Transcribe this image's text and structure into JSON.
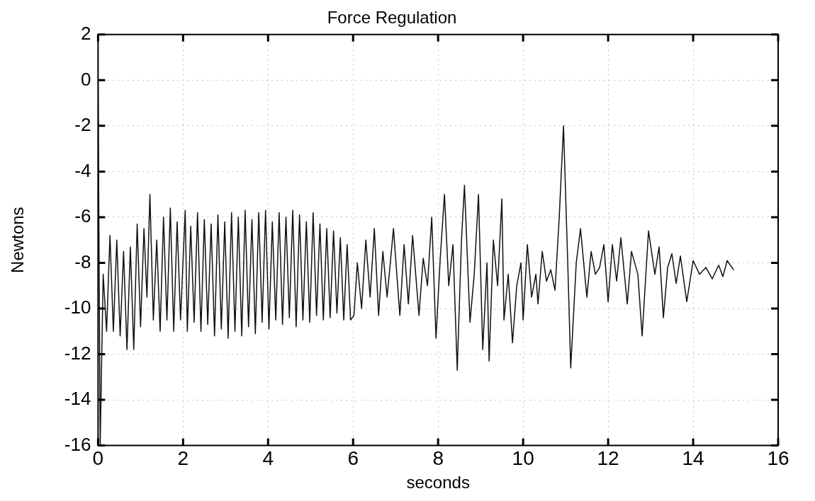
{
  "chart_data": {
    "type": "line",
    "title": "Force Regulation",
    "xlabel": "seconds",
    "ylabel": "Newtons",
    "xlim": [
      0,
      16
    ],
    "xticks": [
      0,
      2,
      4,
      6,
      8,
      10,
      12,
      14,
      16
    ],
    "ylim": [
      -16,
      2
    ],
    "yticks": [
      -16,
      -14,
      -12,
      -10,
      -8,
      -6,
      -4,
      -2,
      0,
      2
    ],
    "grid": true,
    "legend": false,
    "marker": "none",
    "line_style": "solid",
    "series": [
      {
        "color": "#111111",
        "x": [
          0,
          0.05,
          0.12,
          0.2,
          0.28,
          0.36,
          0.44,
          0.52,
          0.6,
          0.68,
          0.76,
          0.84,
          0.92,
          1.0,
          1.08,
          1.15,
          1.22,
          1.3,
          1.38,
          1.46,
          1.54,
          1.62,
          1.7,
          1.78,
          1.86,
          1.94,
          2.05,
          2.1,
          2.18,
          2.26,
          2.34,
          2.42,
          2.5,
          2.58,
          2.66,
          2.74,
          2.82,
          2.9,
          2.98,
          3.06,
          3.14,
          3.22,
          3.3,
          3.38,
          3.46,
          3.54,
          3.62,
          3.7,
          3.78,
          3.86,
          3.94,
          4.02,
          4.1,
          4.18,
          4.26,
          4.34,
          4.42,
          4.5,
          4.58,
          4.66,
          4.74,
          4.82,
          4.9,
          4.98,
          5.06,
          5.14,
          5.22,
          5.3,
          5.38,
          5.46,
          5.54,
          5.62,
          5.7,
          5.78,
          5.86,
          5.94,
          6.02,
          6.1,
          6.2,
          6.3,
          6.4,
          6.5,
          6.6,
          6.7,
          6.8,
          6.95,
          7.1,
          7.2,
          7.3,
          7.4,
          7.55,
          7.65,
          7.75,
          7.85,
          7.95,
          8.05,
          8.15,
          8.25,
          8.35,
          8.45,
          8.55,
          8.62,
          8.75,
          8.85,
          8.95,
          9.05,
          9.15,
          9.2,
          9.3,
          9.4,
          9.5,
          9.55,
          9.65,
          9.75,
          9.85,
          9.95,
          10.0,
          10.1,
          10.2,
          10.3,
          10.35,
          10.45,
          10.55,
          10.65,
          10.75,
          10.85,
          10.95,
          11.05,
          11.12,
          11.25,
          11.35,
          11.5,
          11.6,
          11.7,
          11.8,
          11.9,
          12.0,
          12.1,
          12.2,
          12.3,
          12.45,
          12.55,
          12.7,
          12.8,
          12.95,
          13.1,
          13.2,
          13.3,
          13.4,
          13.5,
          13.6,
          13.7,
          13.85,
          14.0,
          14.15,
          14.3,
          14.45,
          14.6,
          14.7,
          14.8,
          14.95
        ],
        "values": [
          0,
          -16,
          -8.5,
          -11,
          -6.8,
          -11,
          -7,
          -11.2,
          -7.5,
          -11.8,
          -7.3,
          -11.8,
          -6.3,
          -10.8,
          -6.5,
          -9.5,
          -5,
          -10.5,
          -7,
          -11,
          -6,
          -10.5,
          -5.6,
          -11,
          -6.2,
          -10.5,
          -5.7,
          -11,
          -6.4,
          -10.6,
          -5.8,
          -11,
          -6.1,
          -10.7,
          -6.3,
          -11.2,
          -5.9,
          -10.9,
          -6.2,
          -11.3,
          -5.8,
          -11,
          -6,
          -11.2,
          -5.7,
          -10.8,
          -6.1,
          -11.1,
          -5.8,
          -10.6,
          -5.7,
          -10.9,
          -6.2,
          -10.5,
          -5.8,
          -10.7,
          -6,
          -10.4,
          -5.7,
          -10.8,
          -5.9,
          -10.5,
          -6.2,
          -10.6,
          -5.8,
          -10.3,
          -6.3,
          -10.5,
          -6.5,
          -10.4,
          -6.6,
          -10.2,
          -6.9,
          -10.5,
          -7.2,
          -10.5,
          -10.3,
          -8,
          -10,
          -7,
          -9.5,
          -6.5,
          -10.3,
          -7.5,
          -9.5,
          -6.5,
          -10.3,
          -7.2,
          -9.8,
          -6.8,
          -10.3,
          -7.8,
          -9,
          -6,
          -11.3,
          -7.8,
          -5,
          -9,
          -7.2,
          -12.7,
          -7,
          -4.6,
          -10.6,
          -8.5,
          -5,
          -11.8,
          -8,
          -12.3,
          -7,
          -9,
          -5.2,
          -10.5,
          -8.5,
          -11.5,
          -9,
          -8,
          -10.5,
          -7.2,
          -9.5,
          -8.5,
          -9.8,
          -7.5,
          -8.8,
          -8.3,
          -9.2,
          -6,
          -2,
          -8,
          -12.6,
          -8,
          -6.5,
          -9.5,
          -7.5,
          -8.5,
          -8.2,
          -7.2,
          -9.7,
          -7.2,
          -8.8,
          -6.9,
          -9.8,
          -7.5,
          -8.5,
          -11.2,
          -6.6,
          -8.5,
          -7.3,
          -10.4,
          -8.2,
          -7.6,
          -8.9,
          -7.7,
          -9.7,
          -7.9,
          -8.5,
          -8.2,
          -8.7,
          -8.1,
          -8.6,
          -7.9,
          -8.3
        ]
      }
    ]
  }
}
